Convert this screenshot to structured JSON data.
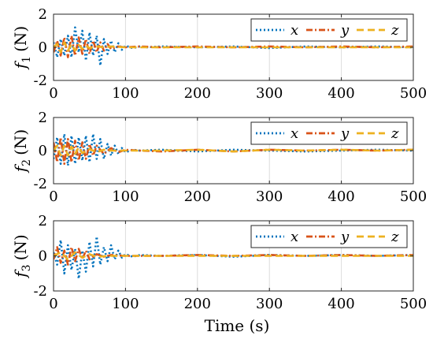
{
  "chart_data": [
    {
      "type": "line",
      "ylabel_symbol": "f",
      "ylabel_subscript": "1",
      "ylabel_unit": "(N)",
      "xlim": [
        0,
        500
      ],
      "ylim": [
        -2,
        2
      ],
      "xticks": [
        0,
        100,
        200,
        300,
        400,
        500
      ],
      "yticks": [
        -2,
        0,
        2
      ],
      "grid": true,
      "legend_position": "top-right",
      "series": [
        {
          "name": "x",
          "color": "#0072BD",
          "style": "dotted",
          "x": [
            0,
            5,
            10,
            15,
            20,
            25,
            30,
            35,
            40,
            45,
            50,
            55,
            60,
            65,
            70,
            75,
            80,
            85,
            90,
            95,
            100,
            110,
            120,
            130,
            150,
            200,
            250,
            300,
            350,
            400,
            450,
            500
          ],
          "y": [
            0.3,
            -0.6,
            0.5,
            -0.5,
            0.7,
            -0.6,
            1.2,
            -0.3,
            1.0,
            -0.8,
            0.9,
            -0.5,
            0.7,
            -1.1,
            0.5,
            -0.4,
            0.4,
            -0.3,
            0.25,
            -0.15,
            0.1,
            -0.05,
            0.05,
            0.0,
            0.05,
            0.0,
            0.05,
            -0.05,
            0.05,
            0.0,
            0.05,
            0.0
          ]
        },
        {
          "name": "y",
          "color": "#D95319",
          "style": "dash-dot",
          "x": [
            0,
            5,
            10,
            15,
            20,
            25,
            30,
            35,
            40,
            45,
            50,
            55,
            60,
            65,
            70,
            75,
            80,
            90,
            100,
            120,
            150,
            200,
            250,
            300,
            350,
            400,
            450,
            500
          ],
          "y": [
            -0.3,
            0.4,
            -0.5,
            0.6,
            -0.6,
            0.7,
            -0.5,
            0.6,
            -0.4,
            0.5,
            -0.4,
            0.4,
            -0.3,
            0.3,
            -0.2,
            0.2,
            -0.1,
            0.05,
            0.0,
            0.05,
            0.0,
            0.05,
            0.0,
            0.05,
            0.0,
            0.05,
            0.0,
            0.05
          ]
        },
        {
          "name": "z",
          "color": "#EDB120",
          "style": "dashed",
          "x": [
            0,
            5,
            10,
            15,
            20,
            25,
            30,
            35,
            40,
            45,
            50,
            60,
            70,
            80,
            100,
            150,
            200,
            250,
            300,
            350,
            400,
            450,
            500
          ],
          "y": [
            0.0,
            0.2,
            -0.3,
            0.3,
            -0.2,
            0.2,
            -0.2,
            0.15,
            -0.1,
            0.1,
            -0.05,
            0.05,
            0.0,
            0.05,
            0.0,
            0.0,
            0.0,
            0.0,
            0.0,
            0.0,
            0.0,
            0.0,
            0.0
          ]
        }
      ]
    },
    {
      "type": "line",
      "ylabel_symbol": "f",
      "ylabel_subscript": "2",
      "ylabel_unit": "(N)",
      "xlim": [
        0,
        500
      ],
      "ylim": [
        -2,
        2
      ],
      "xticks": [
        0,
        100,
        200,
        300,
        400,
        500
      ],
      "yticks": [
        -2,
        0,
        2
      ],
      "grid": true,
      "legend_position": "top-right",
      "series": [
        {
          "name": "x",
          "color": "#0072BD",
          "style": "dotted",
          "x": [
            0,
            5,
            10,
            15,
            20,
            25,
            30,
            35,
            40,
            45,
            50,
            55,
            60,
            65,
            70,
            75,
            80,
            85,
            90,
            95,
            100,
            110,
            120,
            150,
            200,
            250,
            300,
            350,
            400,
            450,
            500
          ],
          "y": [
            -0.5,
            0.8,
            -0.8,
            1.0,
            -0.9,
            0.9,
            -0.8,
            0.8,
            -0.6,
            0.9,
            -0.7,
            1.0,
            -0.5,
            0.7,
            -0.5,
            0.4,
            -0.3,
            0.3,
            -0.2,
            0.15,
            -0.1,
            0.05,
            0.0,
            0.05,
            -0.05,
            0.05,
            0.0,
            -0.05,
            0.0,
            0.05,
            0.0
          ]
        },
        {
          "name": "y",
          "color": "#D95319",
          "style": "dash-dot",
          "x": [
            0,
            5,
            10,
            15,
            20,
            25,
            30,
            35,
            40,
            45,
            50,
            55,
            60,
            70,
            80,
            90,
            100,
            120,
            150,
            200,
            250,
            300,
            350,
            400,
            450,
            500
          ],
          "y": [
            0.5,
            -0.7,
            0.8,
            -0.8,
            0.7,
            -0.7,
            0.6,
            -0.6,
            0.5,
            -0.5,
            0.4,
            -0.3,
            0.3,
            -0.2,
            0.15,
            -0.1,
            0.05,
            0.0,
            -0.05,
            0.05,
            -0.05,
            0.05,
            0.0,
            0.05,
            0.0,
            0.05
          ]
        },
        {
          "name": "z",
          "color": "#EDB120",
          "style": "dashed",
          "x": [
            0,
            5,
            10,
            15,
            20,
            25,
            30,
            35,
            40,
            50,
            60,
            70,
            80,
            100,
            150,
            200,
            250,
            300,
            350,
            400,
            450,
            500
          ],
          "y": [
            0.0,
            0.3,
            -0.3,
            0.3,
            -0.3,
            0.25,
            -0.2,
            0.2,
            -0.15,
            0.1,
            -0.1,
            0.05,
            0.0,
            0.0,
            0.0,
            0.05,
            -0.05,
            0.05,
            0.0,
            0.05,
            0.0,
            0.05
          ]
        }
      ]
    },
    {
      "type": "line",
      "ylabel_symbol": "f",
      "ylabel_subscript": "3",
      "ylabel_unit": "(N)",
      "xlim": [
        0,
        500
      ],
      "ylim": [
        -2,
        2
      ],
      "xticks": [
        0,
        100,
        200,
        300,
        400,
        500
      ],
      "yticks": [
        -2,
        0,
        2
      ],
      "grid": true,
      "legend_position": "top-right",
      "series": [
        {
          "name": "x",
          "color": "#0072BD",
          "style": "dotted",
          "x": [
            0,
            5,
            10,
            15,
            20,
            25,
            30,
            35,
            40,
            45,
            50,
            55,
            60,
            65,
            70,
            75,
            80,
            85,
            90,
            95,
            100,
            110,
            120,
            150,
            200,
            250,
            300,
            350,
            400,
            450,
            500
          ],
          "y": [
            0.2,
            -0.5,
            0.9,
            -1.0,
            0.6,
            -0.8,
            0.4,
            -1.3,
            0.3,
            -0.9,
            0.8,
            -0.6,
            1.1,
            -0.5,
            0.5,
            -0.3,
            0.6,
            -0.2,
            0.3,
            -0.1,
            0.1,
            -0.05,
            0.05,
            0.0,
            0.05,
            -0.05,
            0.05,
            0.0,
            0.05,
            0.0,
            0.05
          ]
        },
        {
          "name": "y",
          "color": "#D95319",
          "style": "dash-dot",
          "x": [
            0,
            5,
            10,
            15,
            20,
            25,
            30,
            35,
            40,
            45,
            50,
            60,
            70,
            80,
            100,
            150,
            200,
            250,
            300,
            350,
            400,
            450,
            500
          ],
          "y": [
            -0.2,
            0.5,
            -0.4,
            0.3,
            -0.5,
            0.5,
            -0.3,
            0.4,
            -0.2,
            0.3,
            -0.2,
            0.1,
            -0.05,
            0.05,
            0.0,
            0.0,
            0.05,
            0.0,
            0.05,
            0.0,
            0.05,
            0.0,
            0.05
          ]
        },
        {
          "name": "z",
          "color": "#EDB120",
          "style": "dashed",
          "x": [
            0,
            10,
            20,
            30,
            40,
            50,
            60,
            80,
            100,
            150,
            200,
            250,
            300,
            350,
            400,
            450,
            500
          ],
          "y": [
            0.0,
            0.2,
            -0.2,
            0.2,
            -0.1,
            0.1,
            -0.05,
            0.0,
            0.0,
            0.0,
            0.0,
            0.0,
            0.0,
            0.0,
            0.0,
            0.0,
            0.0
          ]
        }
      ]
    }
  ],
  "xlabel": "Time (s)"
}
